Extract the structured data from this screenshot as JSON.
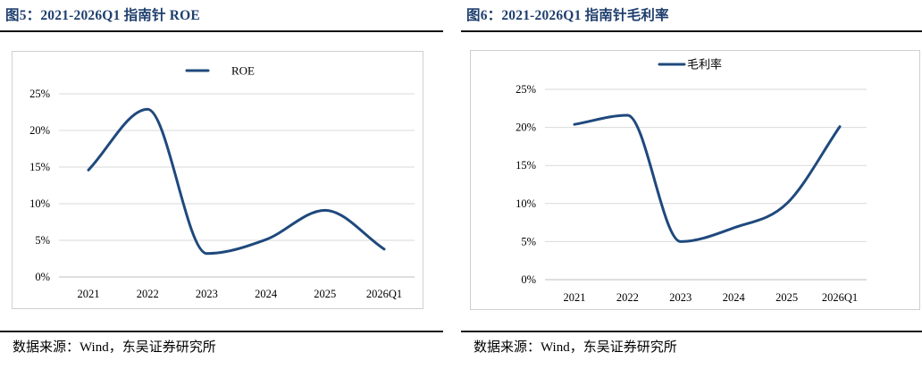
{
  "figures": [
    {
      "title": "图5：2021-2026Q1 指南针 ROE",
      "source": "数据来源：Wind，东吴证券研究所",
      "chart_data": {
        "type": "line",
        "title": "",
        "xlabel": "",
        "ylabel": "",
        "categories": [
          "2021",
          "2022",
          "2023",
          "2024",
          "2025",
          "2026Q1"
        ],
        "series": [
          {
            "name": "ROE",
            "values": [
              14.6,
              22.9,
              3.2,
              5.1,
              9.1,
              3.8
            ],
            "color": "#1f497d"
          }
        ],
        "ylim": [
          0,
          25
        ],
        "yticks": [
          0,
          5,
          10,
          15,
          20,
          25
        ],
        "ytick_labels": [
          "0%",
          "5%",
          "10%",
          "15%",
          "20%",
          "25%"
        ],
        "grid": true,
        "smooth": true,
        "legend": "top-center"
      }
    },
    {
      "title": "图6：2021-2026Q1 指南针毛利率",
      "source": "数据来源：Wind，东吴证券研究所",
      "chart_data": {
        "type": "line",
        "title": "",
        "xlabel": "",
        "ylabel": "",
        "categories": [
          "2021",
          "2022",
          "2023",
          "2024",
          "2025",
          "2026Q1"
        ],
        "series": [
          {
            "name": "毛利率",
            "values": [
              20.4,
              21.6,
              5.0,
              6.8,
              10.0,
              20.1
            ],
            "color": "#1f497d"
          }
        ],
        "ylim": [
          0,
          25
        ],
        "yticks": [
          0,
          5,
          10,
          15,
          20,
          25
        ],
        "ytick_labels": [
          "0%",
          "5%",
          "10%",
          "15%",
          "20%",
          "25%"
        ],
        "grid": true,
        "smooth": true,
        "legend": "top-center"
      }
    }
  ]
}
